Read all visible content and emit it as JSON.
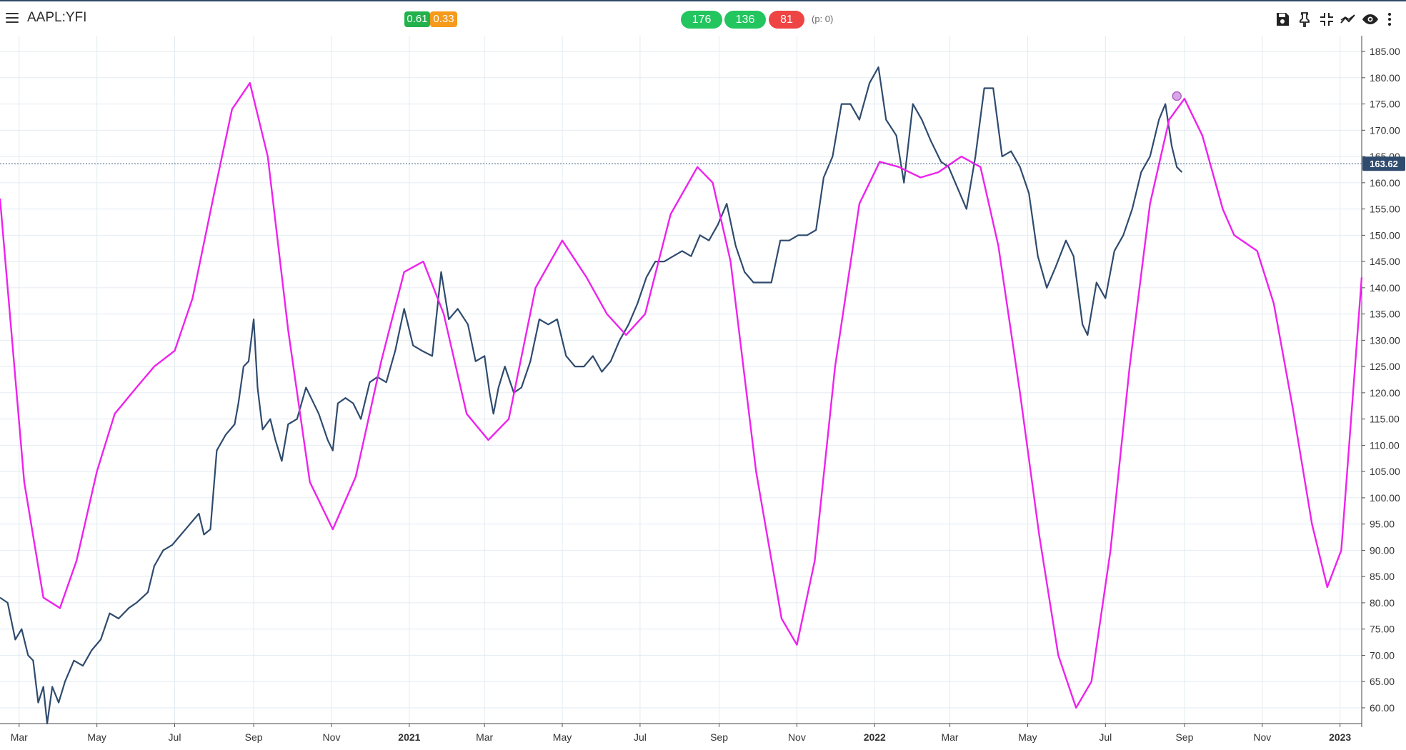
{
  "header": {
    "symbol": "AAPL:YFI",
    "score_badges": [
      {
        "label": "0.61",
        "color": "#22b14c"
      },
      {
        "label": "0.33",
        "color": "#f59a1b"
      }
    ],
    "count_pills": [
      {
        "label": "176",
        "color": "#22c55e"
      },
      {
        "label": "136",
        "color": "#22c55e"
      },
      {
        "label": "81",
        "color": "#ef4444"
      }
    ],
    "p_label": "(p: 0)",
    "tools": [
      "save-icon",
      "pin-icon",
      "collapse-icon",
      "indicator-icon",
      "eye-icon",
      "more-vertical-icon"
    ]
  },
  "chart_data": {
    "type": "line",
    "y_ticks": [
      "185.00",
      "180.00",
      "175.00",
      "170.00",
      "165.00",
      "160.00",
      "155.00",
      "150.00",
      "145.00",
      "140.00",
      "135.00",
      "130.00",
      "125.00",
      "120.00",
      "115.00",
      "110.00",
      "105.00",
      "100.00",
      "95.00",
      "90.00",
      "85.00",
      "80.00",
      "75.00",
      "70.00",
      "65.00",
      "60.00"
    ],
    "ylim": [
      57,
      188
    ],
    "x_start": "2020-02-15",
    "x_end": "2023-01-18",
    "x_ticks": [
      {
        "date": "2020-03-01",
        "label": "Mar"
      },
      {
        "date": "2020-05-01",
        "label": "May"
      },
      {
        "date": "2020-07-01",
        "label": "Jul"
      },
      {
        "date": "2020-09-01",
        "label": "Sep"
      },
      {
        "date": "2020-11-01",
        "label": "Nov"
      },
      {
        "date": "2021-01-01",
        "label": "2021",
        "major": true
      },
      {
        "date": "2021-03-01",
        "label": "Mar"
      },
      {
        "date": "2021-05-01",
        "label": "May"
      },
      {
        "date": "2021-07-01",
        "label": "Jul"
      },
      {
        "date": "2021-09-01",
        "label": "Sep"
      },
      {
        "date": "2021-11-01",
        "label": "Nov"
      },
      {
        "date": "2022-01-01",
        "label": "2022",
        "major": true
      },
      {
        "date": "2022-03-01",
        "label": "Mar"
      },
      {
        "date": "2022-05-01",
        "label": "May"
      },
      {
        "date": "2022-07-01",
        "label": "Jul"
      },
      {
        "date": "2022-09-01",
        "label": "Sep"
      },
      {
        "date": "2022-11-01",
        "label": "Nov"
      },
      {
        "date": "2023-01-01",
        "label": "2023",
        "major": true
      }
    ],
    "last_price": 163.62,
    "last_price_label": "163.62",
    "series": [
      {
        "color": "#2f4b6e",
        "points": [
          [
            "2020-02-15",
            81
          ],
          [
            "2020-02-21",
            80
          ],
          [
            "2020-02-27",
            73
          ],
          [
            "2020-03-03",
            75
          ],
          [
            "2020-03-08",
            70
          ],
          [
            "2020-03-12",
            69
          ],
          [
            "2020-03-16",
            61
          ],
          [
            "2020-03-20",
            64
          ],
          [
            "2020-03-23",
            57
          ],
          [
            "2020-03-27",
            64
          ],
          [
            "2020-04-01",
            61
          ],
          [
            "2020-04-06",
            65
          ],
          [
            "2020-04-13",
            69
          ],
          [
            "2020-04-20",
            68
          ],
          [
            "2020-04-27",
            71
          ],
          [
            "2020-05-04",
            73
          ],
          [
            "2020-05-11",
            78
          ],
          [
            "2020-05-18",
            77
          ],
          [
            "2020-05-26",
            79
          ],
          [
            "2020-06-01",
            80
          ],
          [
            "2020-06-10",
            82
          ],
          [
            "2020-06-15",
            87
          ],
          [
            "2020-06-22",
            90
          ],
          [
            "2020-06-29",
            91
          ],
          [
            "2020-07-06",
            93
          ],
          [
            "2020-07-13",
            95
          ],
          [
            "2020-07-20",
            97
          ],
          [
            "2020-07-24",
            93
          ],
          [
            "2020-07-29",
            94
          ],
          [
            "2020-08-03",
            109
          ],
          [
            "2020-08-10",
            112
          ],
          [
            "2020-08-17",
            114
          ],
          [
            "2020-08-20",
            118
          ],
          [
            "2020-08-24",
            125
          ],
          [
            "2020-08-28",
            126
          ],
          [
            "2020-09-01",
            134
          ],
          [
            "2020-09-04",
            121
          ],
          [
            "2020-09-08",
            113
          ],
          [
            "2020-09-14",
            115
          ],
          [
            "2020-09-18",
            111
          ],
          [
            "2020-09-23",
            107
          ],
          [
            "2020-09-28",
            114
          ],
          [
            "2020-10-05",
            115
          ],
          [
            "2020-10-12",
            121
          ],
          [
            "2020-10-16",
            119
          ],
          [
            "2020-10-22",
            116
          ],
          [
            "2020-10-29",
            111
          ],
          [
            "2020-11-02",
            109
          ],
          [
            "2020-11-06",
            118
          ],
          [
            "2020-11-12",
            119
          ],
          [
            "2020-11-18",
            118
          ],
          [
            "2020-11-24",
            115
          ],
          [
            "2020-12-01",
            122
          ],
          [
            "2020-12-07",
            123
          ],
          [
            "2020-12-14",
            122
          ],
          [
            "2020-12-21",
            128
          ],
          [
            "2020-12-28",
            136
          ],
          [
            "2021-01-04",
            129
          ],
          [
            "2021-01-11",
            128
          ],
          [
            "2021-01-19",
            127
          ],
          [
            "2021-01-26",
            143
          ],
          [
            "2021-02-01",
            134
          ],
          [
            "2021-02-08",
            136
          ],
          [
            "2021-02-16",
            133
          ],
          [
            "2021-02-22",
            126
          ],
          [
            "2021-03-01",
            127
          ],
          [
            "2021-03-05",
            120
          ],
          [
            "2021-03-08",
            116
          ],
          [
            "2021-03-12",
            121
          ],
          [
            "2021-03-17",
            125
          ],
          [
            "2021-03-24",
            120
          ],
          [
            "2021-03-30",
            121
          ],
          [
            "2021-04-06",
            126
          ],
          [
            "2021-04-13",
            134
          ],
          [
            "2021-04-20",
            133
          ],
          [
            "2021-04-27",
            134
          ],
          [
            "2021-05-04",
            127
          ],
          [
            "2021-05-11",
            125
          ],
          [
            "2021-05-18",
            125
          ],
          [
            "2021-05-25",
            127
          ],
          [
            "2021-06-01",
            124
          ],
          [
            "2021-06-08",
            126
          ],
          [
            "2021-06-15",
            130
          ],
          [
            "2021-06-22",
            133
          ],
          [
            "2021-06-29",
            137
          ],
          [
            "2021-07-06",
            142
          ],
          [
            "2021-07-13",
            145
          ],
          [
            "2021-07-20",
            145
          ],
          [
            "2021-07-27",
            146
          ],
          [
            "2021-08-03",
            147
          ],
          [
            "2021-08-10",
            146
          ],
          [
            "2021-08-17",
            150
          ],
          [
            "2021-08-24",
            149
          ],
          [
            "2021-08-31",
            152
          ],
          [
            "2021-09-07",
            156
          ],
          [
            "2021-09-14",
            148
          ],
          [
            "2021-09-21",
            143
          ],
          [
            "2021-09-28",
            141
          ],
          [
            "2021-10-05",
            141
          ],
          [
            "2021-10-12",
            141
          ],
          [
            "2021-10-19",
            149
          ],
          [
            "2021-10-26",
            149
          ],
          [
            "2021-11-02",
            150
          ],
          [
            "2021-11-09",
            150
          ],
          [
            "2021-11-16",
            151
          ],
          [
            "2021-11-22",
            161
          ],
          [
            "2021-11-29",
            165
          ],
          [
            "2021-12-06",
            175
          ],
          [
            "2021-12-13",
            175
          ],
          [
            "2021-12-20",
            172
          ],
          [
            "2021-12-28",
            179
          ],
          [
            "2022-01-04",
            182
          ],
          [
            "2022-01-10",
            172
          ],
          [
            "2022-01-18",
            169
          ],
          [
            "2022-01-24",
            160
          ],
          [
            "2022-01-31",
            175
          ],
          [
            "2022-02-07",
            172
          ],
          [
            "2022-02-14",
            168
          ],
          [
            "2022-02-22",
            164
          ],
          [
            "2022-02-28",
            163
          ],
          [
            "2022-03-07",
            159
          ],
          [
            "2022-03-14",
            155
          ],
          [
            "2022-03-21",
            165
          ],
          [
            "2022-03-28",
            178
          ],
          [
            "2022-04-04",
            178
          ],
          [
            "2022-04-11",
            165
          ],
          [
            "2022-04-18",
            166
          ],
          [
            "2022-04-25",
            163
          ],
          [
            "2022-05-02",
            158
          ],
          [
            "2022-05-09",
            146
          ],
          [
            "2022-05-16",
            140
          ],
          [
            "2022-05-23",
            144
          ],
          [
            "2022-05-31",
            149
          ],
          [
            "2022-06-06",
            146
          ],
          [
            "2022-06-13",
            133
          ],
          [
            "2022-06-17",
            131
          ],
          [
            "2022-06-24",
            141
          ],
          [
            "2022-07-01",
            138
          ],
          [
            "2022-07-08",
            147
          ],
          [
            "2022-07-15",
            150
          ],
          [
            "2022-07-22",
            155
          ],
          [
            "2022-07-29",
            162
          ],
          [
            "2022-08-05",
            165
          ],
          [
            "2022-08-12",
            172
          ],
          [
            "2022-08-17",
            175
          ],
          [
            "2022-08-22",
            167
          ],
          [
            "2022-08-26",
            163
          ],
          [
            "2022-08-30",
            162
          ]
        ]
      },
      {
        "color": "#ee22ee",
        "points": [
          [
            "2020-02-15",
            157
          ],
          [
            "2020-03-05",
            103
          ],
          [
            "2020-03-20",
            81
          ],
          [
            "2020-04-02",
            79
          ],
          [
            "2020-04-15",
            88
          ],
          [
            "2020-05-01",
            105
          ],
          [
            "2020-05-15",
            116
          ],
          [
            "2020-06-01",
            121
          ],
          [
            "2020-06-15",
            125
          ],
          [
            "2020-07-01",
            128
          ],
          [
            "2020-07-15",
            138
          ],
          [
            "2020-08-01",
            158
          ],
          [
            "2020-08-15",
            174
          ],
          [
            "2020-08-29",
            179
          ],
          [
            "2020-09-12",
            165
          ],
          [
            "2020-09-28",
            132
          ],
          [
            "2020-10-15",
            103
          ],
          [
            "2020-11-02",
            94
          ],
          [
            "2020-11-20",
            104
          ],
          [
            "2020-12-10",
            126
          ],
          [
            "2020-12-28",
            143
          ],
          [
            "2021-01-12",
            145
          ],
          [
            "2021-01-28",
            135
          ],
          [
            "2021-02-15",
            116
          ],
          [
            "2021-03-04",
            111
          ],
          [
            "2021-03-20",
            115
          ],
          [
            "2021-04-10",
            140
          ],
          [
            "2021-05-01",
            149
          ],
          [
            "2021-05-20",
            142
          ],
          [
            "2021-06-05",
            135
          ],
          [
            "2021-06-20",
            131
          ],
          [
            "2021-07-05",
            135
          ],
          [
            "2021-07-25",
            154
          ],
          [
            "2021-08-15",
            163
          ],
          [
            "2021-08-27",
            160
          ],
          [
            "2021-09-10",
            145
          ],
          [
            "2021-09-30",
            105
          ],
          [
            "2021-10-20",
            77
          ],
          [
            "2021-11-01",
            72
          ],
          [
            "2021-11-15",
            88
          ],
          [
            "2021-12-01",
            125
          ],
          [
            "2021-12-20",
            156
          ],
          [
            "2022-01-05",
            164
          ],
          [
            "2022-01-20",
            163
          ],
          [
            "2022-02-06",
            161
          ],
          [
            "2022-02-20",
            162
          ],
          [
            "2022-03-10",
            165
          ],
          [
            "2022-03-25",
            163
          ],
          [
            "2022-04-08",
            148
          ],
          [
            "2022-04-25",
            120
          ],
          [
            "2022-05-10",
            93
          ],
          [
            "2022-05-25",
            70
          ],
          [
            "2022-06-08",
            60
          ],
          [
            "2022-06-20",
            65
          ],
          [
            "2022-07-05",
            90
          ],
          [
            "2022-07-20",
            125
          ],
          [
            "2022-08-05",
            156
          ],
          [
            "2022-08-20",
            172
          ],
          [
            "2022-09-01",
            176
          ],
          [
            "2022-09-15",
            169
          ],
          [
            "2022-10-01",
            155
          ],
          [
            "2022-10-10",
            150
          ],
          [
            "2022-10-28",
            147
          ],
          [
            "2022-11-10",
            137
          ],
          [
            "2022-11-25",
            117
          ],
          [
            "2022-12-10",
            95
          ],
          [
            "2022-12-22",
            83
          ],
          [
            "2023-01-02",
            90
          ],
          [
            "2023-01-18",
            142
          ]
        ]
      }
    ],
    "marker": {
      "date": "2022-08-26",
      "value": 176.5
    }
  }
}
